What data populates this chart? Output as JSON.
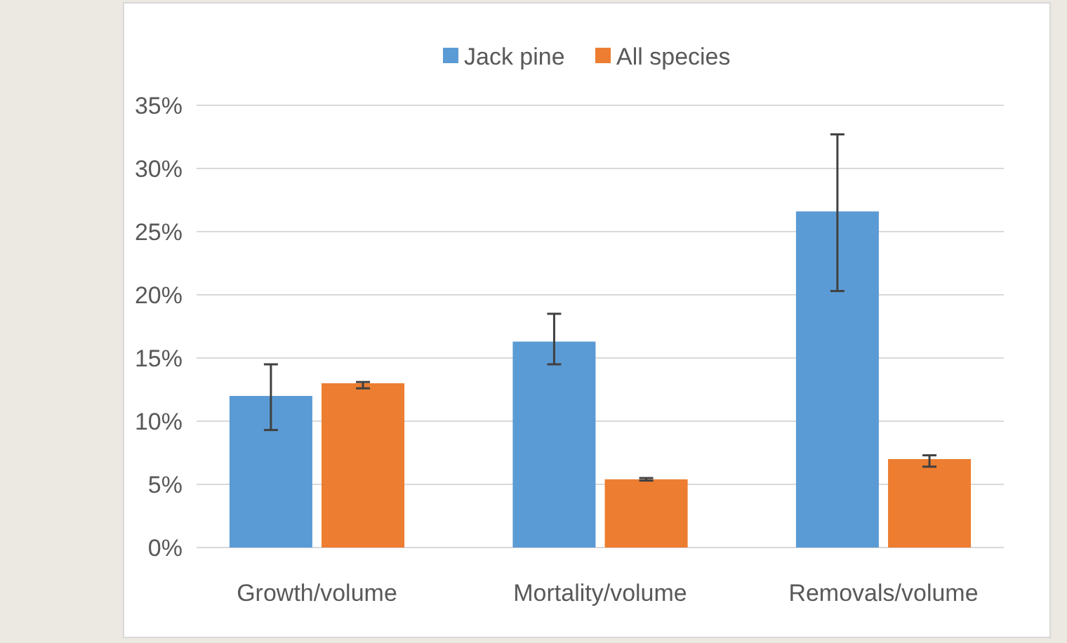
{
  "chart_data": {
    "type": "bar",
    "categories": [
      "Growth/volume",
      "Mortality/volume",
      "Removals/volume"
    ],
    "series": [
      {
        "name": "Jack pine",
        "color": "#5b9bd5",
        "values": [
          12,
          16.3,
          26.6
        ],
        "errors": [
          [
            9.3,
            14.5
          ],
          [
            14.5,
            18.5
          ],
          [
            20.3,
            32.7
          ]
        ]
      },
      {
        "name": "All species",
        "color": "#ed7d31",
        "values": [
          13,
          5.4,
          7
        ],
        "errors": [
          [
            12.6,
            13.1
          ],
          [
            5.3,
            5.5
          ],
          [
            6.4,
            7.3
          ]
        ]
      }
    ],
    "ylim": [
      0,
      35
    ],
    "yticks": [
      {
        "value": 0,
        "label": "0%"
      },
      {
        "value": 5,
        "label": "5%"
      },
      {
        "value": 10,
        "label": "10%"
      },
      {
        "value": 15,
        "label": "15%"
      },
      {
        "value": 20,
        "label": "20%"
      },
      {
        "value": 25,
        "label": "25%"
      },
      {
        "value": 30,
        "label": "30%"
      },
      {
        "value": 35,
        "label": "35%"
      }
    ],
    "grid": "y",
    "legend": "top"
  }
}
